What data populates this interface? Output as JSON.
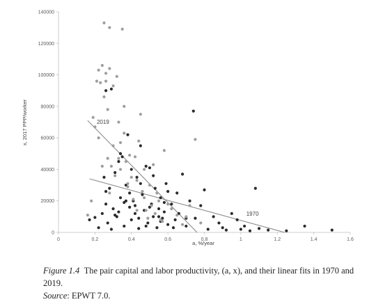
{
  "chart_data": {
    "type": "scatter",
    "xlabel": "a, %/year",
    "ylabel": "x, 2017 PPP/worker",
    "xlim": [
      0,
      1.6
    ],
    "ylim": [
      0,
      140000
    ],
    "x_ticks": [
      "0",
      "0.2",
      "0.4",
      "0.6",
      "0.8",
      "1",
      "1.2",
      "1.4",
      "1.6"
    ],
    "x_tick_values": [
      0,
      0.2,
      0.4,
      0.6,
      0.8,
      1.0,
      1.2,
      1.4,
      1.6
    ],
    "y_ticks": [
      "0",
      "20000",
      "40000",
      "60000",
      "80000",
      "100000",
      "120000",
      "140000"
    ],
    "y_tick_values": [
      0,
      20000,
      40000,
      60000,
      80000,
      100000,
      120000,
      140000
    ],
    "grid": false,
    "series": [
      {
        "name": "1970",
        "color": "#2b2b2b",
        "points": [
          [
            0.17,
            8000
          ],
          [
            0.2,
            9500
          ],
          [
            0.22,
            3000
          ],
          [
            0.24,
            12000
          ],
          [
            0.25,
            35000
          ],
          [
            0.26,
            18000
          ],
          [
            0.27,
            6000
          ],
          [
            0.28,
            28000
          ],
          [
            0.29,
            2000
          ],
          [
            0.3,
            15000
          ],
          [
            0.31,
            38000
          ],
          [
            0.32,
            10000
          ],
          [
            0.33,
            45000
          ],
          [
            0.34,
            22000
          ],
          [
            0.35,
            48000
          ],
          [
            0.36,
            4000
          ],
          [
            0.37,
            30000
          ],
          [
            0.38,
            62000
          ],
          [
            0.39,
            16000
          ],
          [
            0.4,
            8000
          ],
          [
            0.41,
            20000
          ],
          [
            0.42,
            12000
          ],
          [
            0.43,
            35000
          ],
          [
            0.44,
            2500
          ],
          [
            0.45,
            55000
          ],
          [
            0.46,
            24000
          ],
          [
            0.47,
            14000
          ],
          [
            0.48,
            42000
          ],
          [
            0.49,
            6000
          ],
          [
            0.5,
            41000
          ],
          [
            0.51,
            18000
          ],
          [
            0.52,
            10000
          ],
          [
            0.53,
            28000
          ],
          [
            0.54,
            3000
          ],
          [
            0.55,
            15000
          ],
          [
            0.56,
            22000
          ],
          [
            0.57,
            9000
          ],
          [
            0.58,
            13000
          ],
          [
            0.59,
            31000
          ],
          [
            0.6,
            5000
          ],
          [
            0.62,
            18000
          ],
          [
            0.64,
            8000
          ],
          [
            0.65,
            25000
          ],
          [
            0.66,
            12000
          ],
          [
            0.68,
            37000
          ],
          [
            0.7,
            4000
          ],
          [
            0.72,
            20000
          ],
          [
            0.74,
            77000
          ],
          [
            0.75,
            9000
          ],
          [
            0.78,
            17000
          ],
          [
            0.8,
            27000
          ],
          [
            0.82,
            2000
          ],
          [
            0.85,
            10000
          ],
          [
            0.88,
            6000
          ],
          [
            0.9,
            3000
          ],
          [
            0.92,
            1500
          ],
          [
            0.95,
            12000
          ],
          [
            0.98,
            8000
          ],
          [
            1.0,
            2000
          ],
          [
            1.02,
            4000
          ],
          [
            1.05,
            1000
          ],
          [
            1.08,
            28000
          ],
          [
            1.1,
            2500
          ],
          [
            1.15,
            1500
          ],
          [
            1.25,
            1000
          ],
          [
            1.35,
            4000
          ],
          [
            1.5,
            1500
          ],
          [
            0.26,
            90000
          ],
          [
            0.29,
            91000
          ],
          [
            0.39,
            25000
          ],
          [
            0.5,
            16000
          ],
          [
            0.56,
            7000
          ],
          [
            0.6,
            26000
          ],
          [
            0.63,
            3000
          ],
          [
            0.45,
            31000
          ],
          [
            0.36,
            19000
          ],
          [
            0.31,
            11000
          ],
          [
            0.26,
            26000
          ],
          [
            0.44,
            9000
          ],
          [
            0.52,
            36000
          ],
          [
            0.58,
            19000
          ],
          [
            0.4,
            40000
          ],
          [
            0.34,
            50000
          ],
          [
            0.37,
            20000
          ],
          [
            0.48,
            4000
          ],
          [
            0.55,
            10000
          ],
          [
            0.7,
            9000
          ],
          [
            0.33,
            13000
          ],
          [
            0.42,
            17000
          ]
        ]
      },
      {
        "name": "2019",
        "color": "#9e9e9e",
        "points": [
          [
            0.16,
            11000
          ],
          [
            0.18,
            20000
          ],
          [
            0.19,
            73000
          ],
          [
            0.2,
            67000
          ],
          [
            0.21,
            96000
          ],
          [
            0.22,
            103000
          ],
          [
            0.23,
            95000
          ],
          [
            0.24,
            106000
          ],
          [
            0.25,
            133000
          ],
          [
            0.25,
            86000
          ],
          [
            0.26,
            101000
          ],
          [
            0.27,
            78000
          ],
          [
            0.28,
            104000
          ],
          [
            0.28,
            130000
          ],
          [
            0.29,
            42000
          ],
          [
            0.3,
            55000
          ],
          [
            0.31,
            36000
          ],
          [
            0.32,
            99000
          ],
          [
            0.33,
            70000
          ],
          [
            0.34,
            57000
          ],
          [
            0.35,
            129000
          ],
          [
            0.36,
            80000
          ],
          [
            0.37,
            45000
          ],
          [
            0.38,
            31000
          ],
          [
            0.39,
            49000
          ],
          [
            0.4,
            35000
          ],
          [
            0.41,
            21000
          ],
          [
            0.42,
            48000
          ],
          [
            0.43,
            33000
          ],
          [
            0.44,
            58000
          ],
          [
            0.45,
            75000
          ],
          [
            0.46,
            26000
          ],
          [
            0.47,
            40000
          ],
          [
            0.48,
            14000
          ],
          [
            0.49,
            9000
          ],
          [
            0.5,
            30000
          ],
          [
            0.51,
            17000
          ],
          [
            0.52,
            43000
          ],
          [
            0.53,
            12000
          ],
          [
            0.55,
            20000
          ],
          [
            0.56,
            8000
          ],
          [
            0.58,
            52000
          ],
          [
            0.6,
            18000
          ],
          [
            0.62,
            15000
          ],
          [
            0.65,
            11000
          ],
          [
            0.68,
            5000
          ],
          [
            0.7,
            10000
          ],
          [
            0.72,
            17000
          ],
          [
            0.75,
            59000
          ],
          [
            0.78,
            6000
          ],
          [
            0.34,
            40000
          ],
          [
            0.27,
            47000
          ],
          [
            0.3,
            93000
          ],
          [
            0.26,
            96000
          ],
          [
            0.22,
            60000
          ],
          [
            0.24,
            42000
          ],
          [
            0.36,
            63000
          ],
          [
            0.38,
            29000
          ],
          [
            0.43,
            14000
          ],
          [
            0.47,
            22000
          ],
          [
            0.54,
            25000
          ],
          [
            0.57,
            7000
          ],
          [
            0.33,
            47000
          ],
          [
            0.28,
            25000
          ]
        ]
      }
    ],
    "fit_lines": [
      {
        "name": "1970",
        "x0": 0.17,
        "y0": 34000,
        "x1": 1.24,
        "y1": 0,
        "color": "#8a8a8a"
      },
      {
        "name": "2019",
        "x0": 0.16,
        "y0": 71000,
        "x1": 0.76,
        "y1": 0,
        "color": "#8a8a8a"
      }
    ],
    "annotations": [
      {
        "text": "2019",
        "x": 0.21,
        "y": 69000
      },
      {
        "text": "1970",
        "x": 1.03,
        "y": 10500
      }
    ]
  },
  "caption": {
    "figure_label": "Figure 1.4",
    "figure_text": "The pair capital and labor productivity, (a, x), and their linear fits in 1970 and 2019.",
    "source_label": "Source",
    "source_text": ": EPWT 7.0."
  }
}
